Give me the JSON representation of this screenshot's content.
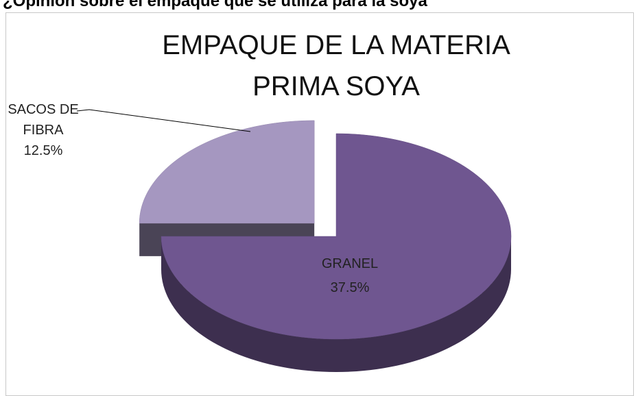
{
  "page_header": "¿Opinión sobre el empaque que se utiliza para la soya",
  "chart_data": {
    "type": "pie",
    "title": "EMPAQUE DE LA MATERIA PRIMA SOYA",
    "categories": [
      "GRANEL",
      "SACOS DE FIBRA"
    ],
    "values": [
      37.5,
      12.5
    ],
    "value_labels": [
      "37.5%",
      "12.5%"
    ],
    "colors": [
      "#6f5690",
      "#a597c0"
    ]
  }
}
